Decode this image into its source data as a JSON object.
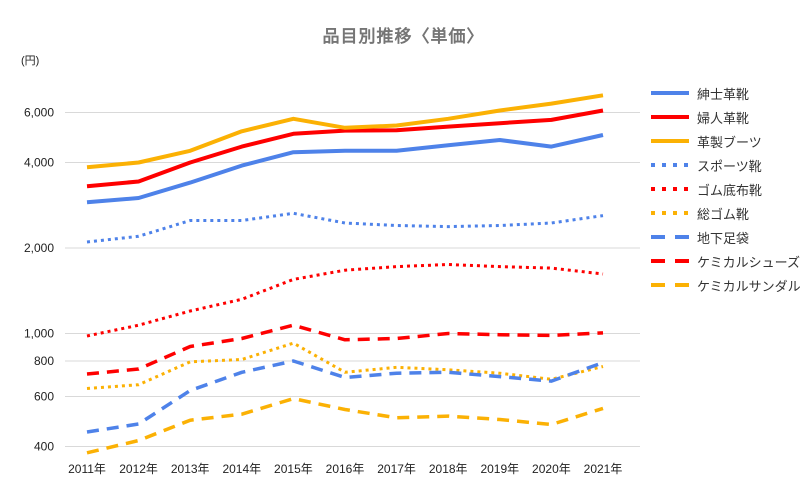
{
  "title": "品目別推移〈単価〉",
  "y_axis": {
    "unit_label": "(円)"
  },
  "colors": {
    "blue": "#4e82e9",
    "red": "#fe0000",
    "yellow": "#fbb104",
    "gridline": "#d9d9d9",
    "axis_text": "#222222",
    "title_text": "#757575",
    "legend_text": "#333333"
  },
  "chart_data": {
    "type": "line",
    "title": "品目別推移〈単価〉",
    "ylabel": "(円)",
    "y_scale": "log",
    "grid": true,
    "legend_position": "right",
    "ylim": [
      360,
      7600
    ],
    "y_ticks": [
      400,
      600,
      800,
      1000,
      2000,
      4000,
      6000
    ],
    "y_tick_labels": [
      "400",
      "600",
      "800",
      "1,000",
      "2,000",
      "4,000",
      "6,000"
    ],
    "x": [
      "2011年",
      "2012年",
      "2013年",
      "2014年",
      "2015年",
      "2016年",
      "2017年",
      "2018年",
      "2019年",
      "2020年",
      "2021年"
    ],
    "series": [
      {
        "name": "紳士革靴",
        "color": "blue",
        "style": "solid",
        "values": [
          2900,
          3000,
          3400,
          3900,
          4350,
          4400,
          4400,
          4600,
          4800,
          4550,
          5000
        ]
      },
      {
        "name": "婦人革靴",
        "color": "red",
        "style": "solid",
        "values": [
          3300,
          3430,
          4000,
          4550,
          5050,
          5180,
          5200,
          5350,
          5500,
          5650,
          6100
        ]
      },
      {
        "name": "革製ブーツ",
        "color": "yellow",
        "style": "solid",
        "values": [
          3850,
          4000,
          4400,
          5150,
          5700,
          5300,
          5400,
          5700,
          6100,
          6450,
          6900
        ]
      },
      {
        "name": "スポーツ靴",
        "color": "blue",
        "style": "dotted",
        "values": [
          2100,
          2200,
          2500,
          2500,
          2650,
          2450,
          2400,
          2380,
          2400,
          2450,
          2600
        ]
      },
      {
        "name": "ゴム底布靴",
        "color": "red",
        "style": "dotted",
        "values": [
          980,
          1070,
          1200,
          1320,
          1550,
          1670,
          1720,
          1750,
          1720,
          1700,
          1620
        ]
      },
      {
        "name": "総ゴム靴",
        "color": "yellow",
        "style": "dotted",
        "values": [
          640,
          660,
          795,
          810,
          925,
          730,
          760,
          745,
          725,
          690,
          765
        ]
      },
      {
        "name": "地下足袋",
        "color": "blue",
        "style": "dashed",
        "values": [
          450,
          480,
          630,
          730,
          800,
          700,
          725,
          730,
          705,
          680,
          790
        ]
      },
      {
        "name": "ケミカルシューズ",
        "color": "red",
        "style": "dashed",
        "values": [
          720,
          750,
          900,
          960,
          1070,
          950,
          960,
          1000,
          990,
          985,
          1005
        ]
      },
      {
        "name": "ケミカルサンダル",
        "color": "yellow",
        "style": "dashed",
        "values": [
          380,
          420,
          495,
          520,
          590,
          540,
          505,
          512,
          498,
          478,
          545
        ]
      }
    ]
  }
}
